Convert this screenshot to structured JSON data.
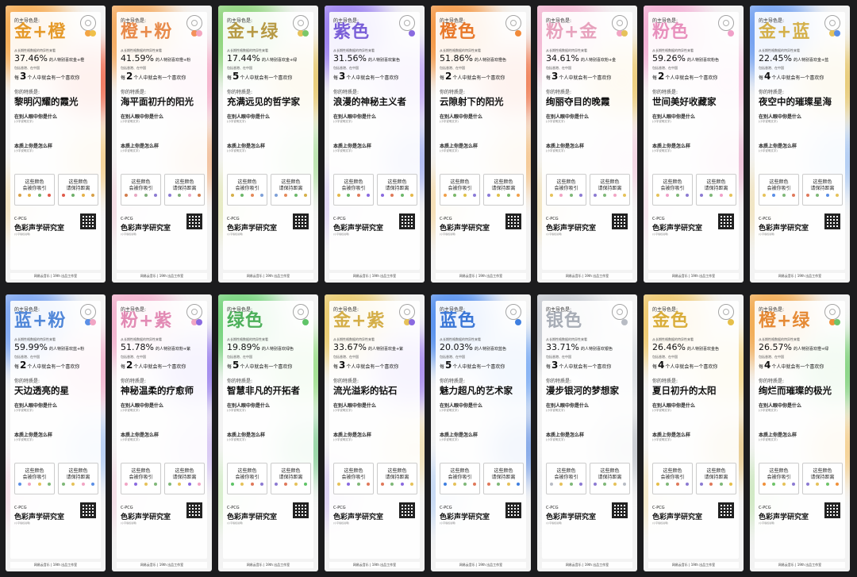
{
  "common": {
    "label": "的主导色是:",
    "subline": "从长期性格数据的特异性来看",
    "region": "包括香港、在中国",
    "odds_prefix": "每",
    "odds_suffix": "个人中就会有一个喜欢你",
    "trait_label": "你的特质是:",
    "h1": "在别人眼中你是什么",
    "h2": "本质上你是怎么样",
    "para_ph": "(小字说明文字)",
    "fbox_left": [
      "这些颜色",
      "会被你吸引"
    ],
    "fbox_right": [
      "这些颜色",
      "请保持距离"
    ],
    "brand_small": "C-PCG",
    "brand": "色彩声学研究室",
    "fine": "(小字版权说明)",
    "footer": "网易云音乐 | 19th 出品工作室"
  },
  "cards": [
    {
      "title": "金+橙",
      "percent": "37.46%",
      "percent_text": "的人特别喜欢金+橙",
      "odds": "3",
      "trait": "黎明闪耀的霞光",
      "dots": [
        "#f4a545",
        "#f0c04a"
      ],
      "blobs": [
        "#f7a13a",
        "#f25a3a",
        "#f7b84a",
        "#f4d28a"
      ],
      "title_color": "#e59a2a",
      "mini": [
        "#d7a048",
        "#e6b24a",
        "#6fb06a",
        "#e05a4a"
      ]
    },
    {
      "title": "橙+粉",
      "percent": "41.59%",
      "percent_text": "的人特别喜欢橙+粉",
      "odds": "2",
      "trait": "海平面初升的阳光",
      "dots": [
        "#f4915a",
        "#f3a7c0"
      ],
      "blobs": [
        "#f5a04a",
        "#f6a6c5",
        "#f29a5c",
        "#f7c3d4"
      ],
      "title_color": "#e88a4a",
      "mini": [
        "#d27c4c",
        "#e8a8c2",
        "#7fae78",
        "#8c7ad2"
      ]
    },
    {
      "title": "金+绿",
      "percent": "17.44%",
      "percent_text": "的人特别喜欢金+绿",
      "odds": "5",
      "trait": "充满远见的哲学家",
      "dots": [
        "#e6c25a",
        "#7bc76a"
      ],
      "blobs": [
        "#7fd06a",
        "#e6c35a",
        "#8fd87a",
        "#d8e08a"
      ],
      "title_color": "#b79a45",
      "mini": [
        "#d6b04a",
        "#6cb86a",
        "#e58a5a",
        "#7ea0d8"
      ]
    },
    {
      "title": "紫色",
      "percent": "31.56%",
      "percent_text": "的人特别喜欢紫色",
      "odds": "3",
      "trait": "浪漫的神秘主义者",
      "dots": [
        "#8a6ae0"
      ],
      "blobs": [
        "#8d6ef0",
        "#b89af6",
        "#7a8cf2",
        "#c9b6f8"
      ],
      "title_color": "#7a5fd8",
      "mini": [
        "#e5b84a",
        "#6cb86a",
        "#e07a5a",
        "#8a6ae0"
      ]
    },
    {
      "title": "橙色",
      "percent": "51.86%",
      "percent_text": "的人特别喜欢橙色",
      "odds": "2",
      "trait": "云隙射下的阳光",
      "dots": [
        "#f28a3a"
      ],
      "blobs": [
        "#f58a2a",
        "#f06a3a",
        "#f7a84a",
        "#f9c76a"
      ],
      "title_color": "#e8782a",
      "mini": [
        "#f0a04a",
        "#7ab86a",
        "#e0c04a",
        "#8a7ad8"
      ]
    },
    {
      "title": "粉+金",
      "percent": "34.61%",
      "percent_text": "的人特别喜欢粉+金",
      "odds": "3",
      "trait": "绚丽夺目的晚霞",
      "dots": [
        "#f1a5c4",
        "#e6c25a"
      ],
      "blobs": [
        "#f3b0cf",
        "#ebc460",
        "#f5c0d8",
        "#f0d48a"
      ],
      "title_color": "#e7a2bd",
      "mini": [
        "#e6c25a",
        "#f1a5c4",
        "#7fb878",
        "#8c7ad2"
      ]
    },
    {
      "title": "粉色",
      "percent": "59.26%",
      "percent_text": "的人特别喜欢粉色",
      "odds": "2",
      "trait": "世间美好收藏家",
      "dots": [
        "#f0a0c8"
      ],
      "blobs": [
        "#f3a5d0",
        "#f7c3e0",
        "#e99ac4",
        "#f9d4e6"
      ],
      "title_color": "#e890bd",
      "mini": [
        "#e6c25a",
        "#f0a0c8",
        "#7fb878",
        "#8c7ad2"
      ]
    },
    {
      "title": "金+蓝",
      "percent": "22.45%",
      "percent_text": "的人特别喜欢金+蓝",
      "odds": "4",
      "trait": "夜空中的璀璨星海",
      "dots": [
        "#e6c25a",
        "#5a8ee6"
      ],
      "blobs": [
        "#5f94f0",
        "#e6c25a",
        "#7fb0f4",
        "#efd48a"
      ],
      "title_color": "#d4b04a",
      "mini": [
        "#e6c25a",
        "#5a8ee6",
        "#7fb878",
        "#e0785a"
      ]
    },
    {
      "title": "蓝+粉",
      "percent": "59.99%",
      "percent_text": "的人特别喜欢蓝+粉",
      "odds": "2",
      "trait": "天边透亮的星",
      "dots": [
        "#5b8fe6",
        "#f1a5c4"
      ],
      "blobs": [
        "#6a9af2",
        "#f3a9c9",
        "#8ab3f4",
        "#f7c6da"
      ],
      "title_color": "#4f86d8",
      "mini": [
        "#5b8fe6",
        "#f1a5c4",
        "#e6c25a",
        "#7fb878"
      ]
    },
    {
      "title": "粉+紫",
      "percent": "51.78%",
      "percent_text": "的人特别喜欢粉+紫",
      "odds": "2",
      "trait": "神秘温柔的疗愈师",
      "dots": [
        "#f1a5c4",
        "#8a6ae0"
      ],
      "blobs": [
        "#f3a9c9",
        "#8f72ec",
        "#c4a8f4",
        "#f7c6da"
      ],
      "title_color": "#e28ab4",
      "mini": [
        "#f1a5c4",
        "#8a6ae0",
        "#e6c25a",
        "#7fb878"
      ]
    },
    {
      "title": "绿色",
      "percent": "19.89%",
      "percent_text": "的人特别喜欢绿色",
      "odds": "5",
      "trait": "智慧非凡的开拓者",
      "dots": [
        "#5fc468"
      ],
      "blobs": [
        "#62cf6a",
        "#8edc7a",
        "#4fbf6a",
        "#b8e8a0"
      ],
      "title_color": "#4db05a",
      "mini": [
        "#5fc468",
        "#e6c25a",
        "#e0785a",
        "#8c7ad2"
      ]
    },
    {
      "title": "金+紫",
      "percent": "33.67%",
      "percent_text": "的人特别喜欢金+紫",
      "odds": "3",
      "trait": "流光溢彩的钻石",
      "dots": [
        "#e6c25a",
        "#8a6ae0"
      ],
      "blobs": [
        "#e9c55a",
        "#9a78ee",
        "#f0d48a",
        "#c0a8f4"
      ],
      "title_color": "#d4ae48",
      "mini": [
        "#e6c25a",
        "#8a6ae0",
        "#7fb878",
        "#e0785a"
      ]
    },
    {
      "title": "蓝色",
      "percent": "20.03%",
      "percent_text": "的人特别喜欢蓝色",
      "odds": "5",
      "trait": "魅力超凡的艺术家",
      "dots": [
        "#3f7fe0"
      ],
      "blobs": [
        "#3f82ee",
        "#6aa2f4",
        "#2f6fe0",
        "#8fbaf6"
      ],
      "title_color": "#3a76d6",
      "mini": [
        "#3f7fe0",
        "#e6c25a",
        "#7fb878",
        "#e0785a"
      ]
    },
    {
      "title": "银色",
      "percent": "33.71%",
      "percent_text": "的人特别喜欢银色",
      "odds": "3",
      "trait": "漫步银河的梦想家",
      "dots": [
        "#b8bcc4"
      ],
      "blobs": [
        "#c2c6ce",
        "#d8dbe0",
        "#a9aeb8",
        "#e4e6ea"
      ],
      "title_color": "#a8adb6",
      "mini": [
        "#b8bcc4",
        "#e6c25a",
        "#7fb878",
        "#8c7ad2"
      ]
    },
    {
      "title": "金色",
      "percent": "26.46%",
      "percent_text": "的人特别喜欢金色",
      "odds": "4",
      "trait": "夏日初升的太阳",
      "dots": [
        "#e6bf4a"
      ],
      "blobs": [
        "#eec25a",
        "#f5d47a",
        "#e0b04a",
        "#f8e09a"
      ],
      "title_color": "#d9ad3a",
      "mini": [
        "#e6bf4a",
        "#7fb878",
        "#e0785a",
        "#8c7ad2"
      ]
    },
    {
      "title": "橙+绿",
      "percent": "26.57%",
      "percent_text": "的人特别喜欢橙+绿",
      "odds": "4",
      "trait": "绚烂而璀璨的极光",
      "dots": [
        "#f0913a",
        "#6fc46a"
      ],
      "blobs": [
        "#f2a03a",
        "#6fce6a",
        "#f7b84a",
        "#a6dd8a"
      ],
      "title_color": "#e58a35",
      "mini": [
        "#f0913a",
        "#6fc46a",
        "#e6c25a",
        "#8c7ad2"
      ]
    }
  ]
}
